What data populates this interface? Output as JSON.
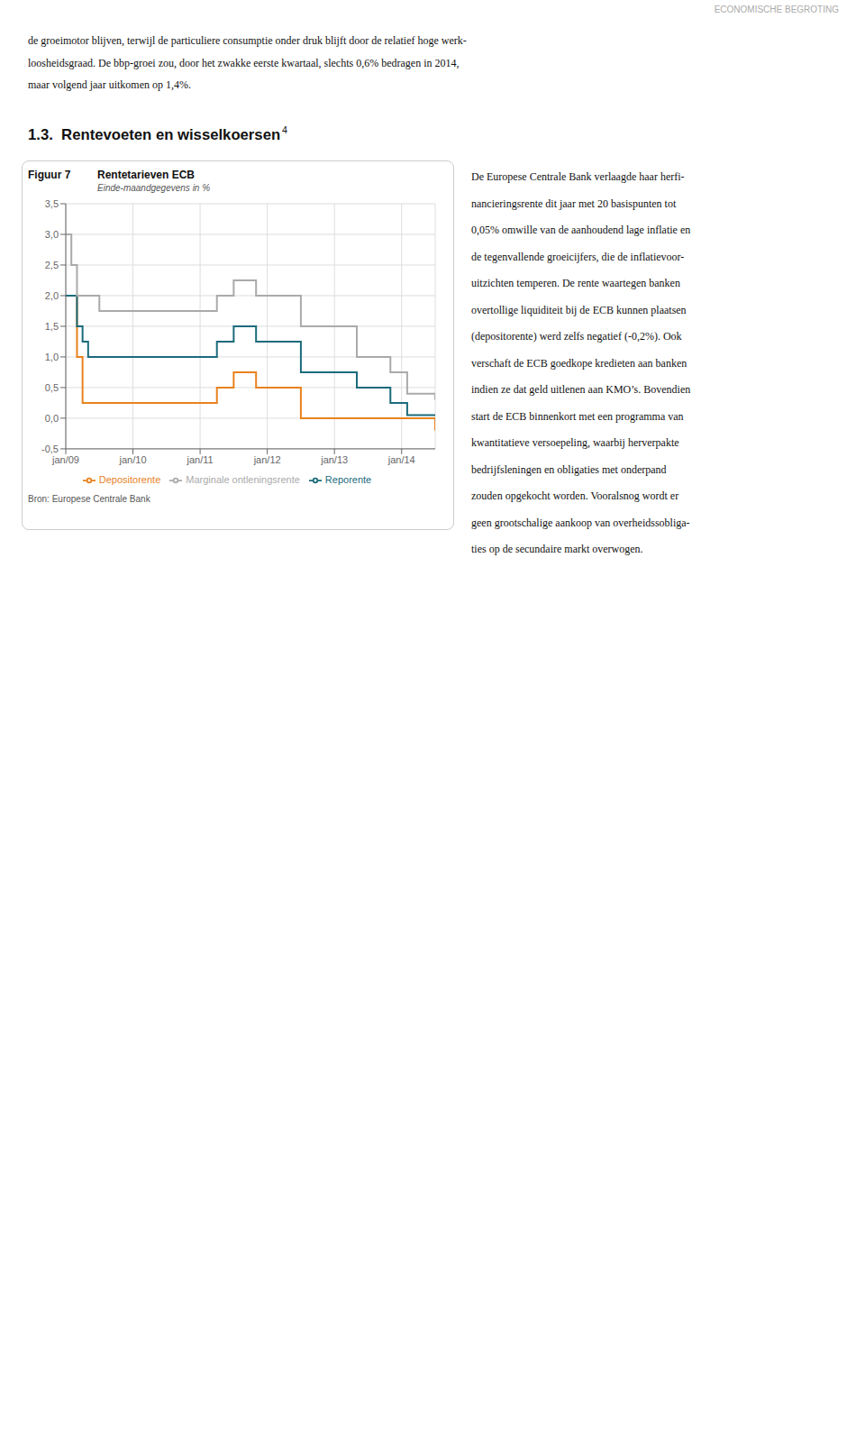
{
  "page": {
    "header": "ECONOMISCHE BEGROTING",
    "body_lines": [
      "de groeimotor blijven, terwijl de particuliere consumptie onder druk blijft door de relatief hoge werk-",
      "loosheidsgraad. De bbp-groei zou, door het zwakke eerste kwartaal, slechts 0,6% bedragen in 2014,",
      "maar volgend jaar uitkomen op 1,4%."
    ],
    "section_title": "1.3.  Rentevoeten en wisselkoersen",
    "section_super": "4",
    "right_text": [
      "De Europese Centrale Bank verlaagde haar herfi-",
      "nancieringsrente dit jaar met 20 basispunten tot",
      "0,05% omwille van de aanhoudend lage inflatie en",
      "de tegenvallende groeicijfers, die de inflatievoor-",
      "uitzichten temperen. De rente waartegen banken",
      "overtollige liquiditeit bij de ECB kunnen plaatsen",
      "(depositorente) werd zelfs negatief (-0,2%). Ook",
      "verschaft de ECB goedkope kredieten aan banken",
      "indien ze dat geld uitlenen aan KMO’s. Bovendien",
      "start de ECB binnenkort met een programma van",
      "kwantitatieve versoepeling, waarbij herverpakte",
      "bedrijfsleningen en obligaties met onderpand",
      "zouden opgekocht worden. Vooralsnog wordt er",
      "geen grootschalige aankoop van overheidssobliga-",
      "ties op de secundaire markt overwogen."
    ]
  },
  "chart_data": {
    "type": "line",
    "label": "Figuur 7",
    "title": "Rentetarieven ECB",
    "subtitle": "Einde-maandgegevens in %",
    "source": "Bron: Europese Centrale Bank",
    "xlim": [
      2009.0,
      2014.5
    ],
    "xticks": [
      {
        "value": 2009.0,
        "label": "jan/09"
      },
      {
        "value": 2010.0,
        "label": "jan/10"
      },
      {
        "value": 2011.0,
        "label": "jan/11"
      },
      {
        "value": 2012.0,
        "label": "jan/12"
      },
      {
        "value": 2013.0,
        "label": "jan/13"
      },
      {
        "value": 2014.0,
        "label": "jan/14"
      }
    ],
    "ylim": [
      -0.5,
      3.5
    ],
    "yticks": [
      {
        "value": -0.5,
        "label": "-0,5"
      },
      {
        "value": 0.0,
        "label": "0,0"
      },
      {
        "value": 0.5,
        "label": "0,5"
      },
      {
        "value": 1.0,
        "label": "1,0"
      },
      {
        "value": 1.5,
        "label": "1,5"
      },
      {
        "value": 2.0,
        "label": "2,0"
      },
      {
        "value": 2.5,
        "label": "2,5"
      },
      {
        "value": 3.0,
        "label": "3,0"
      },
      {
        "value": 3.5,
        "label": "3,5"
      }
    ],
    "grid": true,
    "series": [
      {
        "name": "Depositorente",
        "color": "#E8821E",
        "line_style": "step",
        "x": [
          2009.0,
          2009.167,
          2009.25,
          2009.5,
          2011.25,
          2011.5,
          2011.833,
          2012.5,
          2012.583,
          2013.333,
          2013.833,
          2014.0,
          2014.5
        ],
        "values": [
          2.0,
          1.0,
          0.25,
          0.25,
          0.5,
          0.75,
          0.5,
          0.0,
          0.0,
          0.0,
          0.0,
          0.0,
          -0.2
        ]
      },
      {
        "name": "Reporente",
        "color": "#1B6B7B",
        "line_style": "step",
        "x": [
          2009.0,
          2009.167,
          2009.25,
          2009.333,
          2009.5,
          2011.25,
          2011.5,
          2011.833,
          2012.5,
          2012.583,
          2013.333,
          2013.833,
          2014.083,
          2014.5
        ],
        "values": [
          2.0,
          1.5,
          1.25,
          1.0,
          1.0,
          1.25,
          1.5,
          1.25,
          0.75,
          0.75,
          0.5,
          0.25,
          0.05,
          0.05
        ]
      },
      {
        "name": "Marginale ontleningsrente",
        "color": "#AAAAAA",
        "line_style": "step",
        "x": [
          2009.0,
          2009.083,
          2009.167,
          2009.5,
          2011.25,
          2011.5,
          2011.833,
          2012.5,
          2012.583,
          2013.333,
          2013.833,
          2014.083,
          2014.5
        ],
        "values": [
          3.0,
          2.5,
          2.0,
          1.75,
          2.0,
          2.25,
          2.0,
          1.5,
          1.5,
          1.0,
          0.75,
          0.4,
          0.3
        ]
      }
    ]
  }
}
